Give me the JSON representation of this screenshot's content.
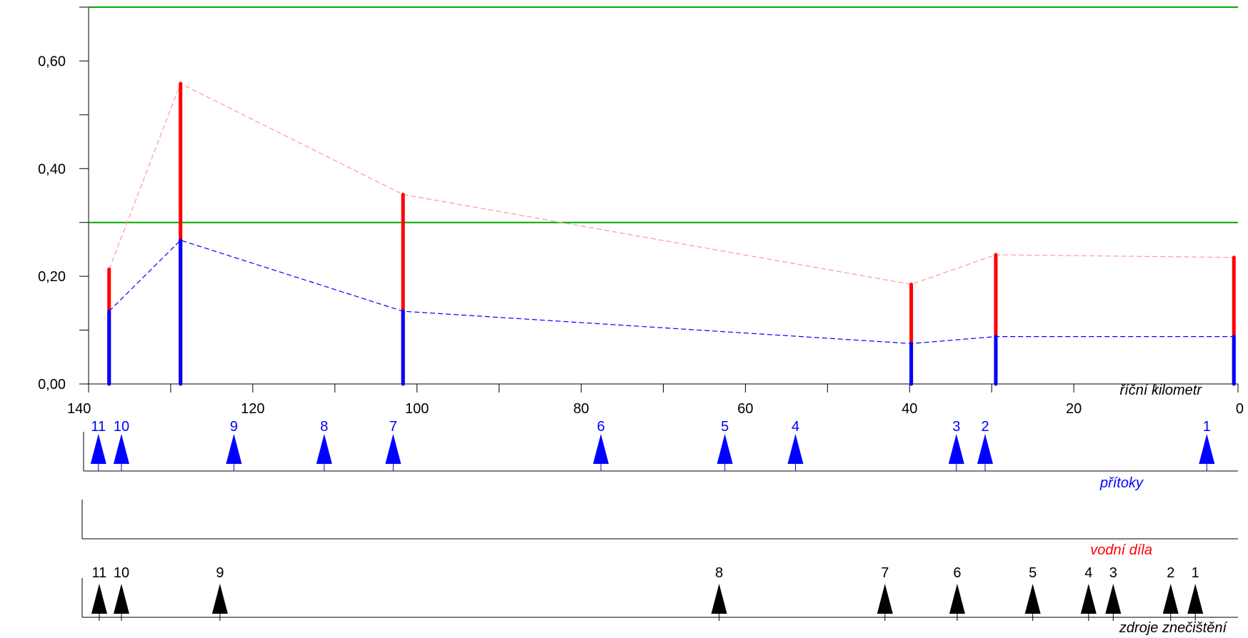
{
  "chart_data": {
    "type": "bar",
    "xlabel": "říční kilometr",
    "xlim": [
      140,
      0
    ],
    "ylim": [
      0,
      0.7
    ],
    "x_ticks": [
      140,
      120,
      100,
      80,
      60,
      40,
      20,
      0
    ],
    "x_tick_labels": [
      "140",
      "120",
      "100",
      "80",
      "60",
      "40",
      "20",
      "0"
    ],
    "y_ticks": [
      0,
      0.2,
      0.4,
      0.6
    ],
    "y_tick_labels": [
      "0,00",
      "0,20",
      "0,40",
      "0,60"
    ],
    "limit_lines": [
      0.3,
      0.7
    ],
    "limit_color": "#00aa00",
    "series": [
      {
        "color": "#ff0000",
        "line_color": "#ff9999",
        "points": [
          {
            "x": 137.5,
            "y": 0.213
          },
          {
            "x": 128.8,
            "y": 0.558
          },
          {
            "x": 101.7,
            "y": 0.352
          },
          {
            "x": 39.8,
            "y": 0.185
          },
          {
            "x": 29.5,
            "y": 0.24
          },
          {
            "x": 0.5,
            "y": 0.235
          }
        ]
      },
      {
        "color": "#0000ff",
        "line_color": "#0000ff",
        "points": [
          {
            "x": 137.5,
            "y": 0.135
          },
          {
            "x": 128.8,
            "y": 0.267
          },
          {
            "x": 101.7,
            "y": 0.135
          },
          {
            "x": 39.8,
            "y": 0.075
          },
          {
            "x": 29.5,
            "y": 0.088
          },
          {
            "x": 0.5,
            "y": 0.088
          }
        ]
      }
    ]
  },
  "tributaries": {
    "label": "přítoky",
    "color": "#0000ff",
    "items": [
      {
        "n": "11",
        "x": 138.8
      },
      {
        "n": "10",
        "x": 136.0
      },
      {
        "n": "9",
        "x": 122.3
      },
      {
        "n": "8",
        "x": 111.3
      },
      {
        "n": "7",
        "x": 102.9
      },
      {
        "n": "6",
        "x": 77.6
      },
      {
        "n": "5",
        "x": 62.5
      },
      {
        "n": "4",
        "x": 53.9
      },
      {
        "n": "3",
        "x": 34.3
      },
      {
        "n": "2",
        "x": 30.8
      },
      {
        "n": "1",
        "x": 3.8
      }
    ]
  },
  "water_works": {
    "label": "vodní díla",
    "color": "#ff0000",
    "items": []
  },
  "pollution_sources": {
    "label": "zdroje znečištění",
    "color": "#000000",
    "items": [
      {
        "n": "11",
        "x": 138.7
      },
      {
        "n": "10",
        "x": 136.0
      },
      {
        "n": "9",
        "x": 124.0
      },
      {
        "n": "8",
        "x": 63.2
      },
      {
        "n": "7",
        "x": 43.0
      },
      {
        "n": "6",
        "x": 34.2
      },
      {
        "n": "5",
        "x": 25.0
      },
      {
        "n": "4",
        "x": 18.2
      },
      {
        "n": "3",
        "x": 15.2
      },
      {
        "n": "2",
        "x": 8.2
      },
      {
        "n": "1",
        "x": 5.2
      }
    ]
  }
}
